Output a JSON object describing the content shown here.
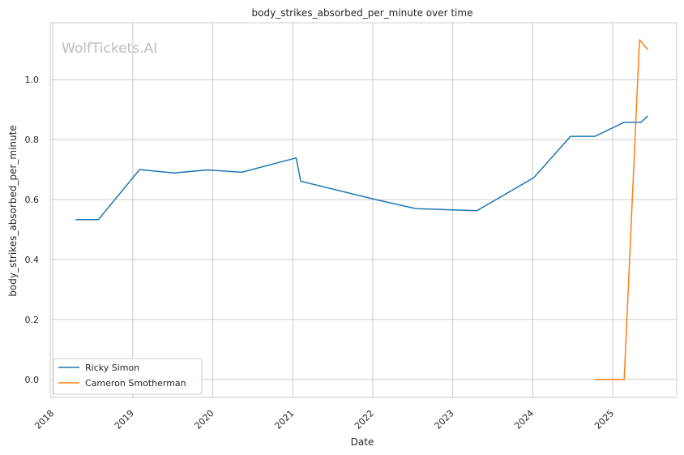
{
  "chart_data": {
    "type": "line",
    "title": "body_strikes_absorbed_per_minute over time",
    "xlabel": "Date",
    "ylabel": "body_strikes_absorbed_per_minute",
    "xlim": [
      "2017-12-20",
      "2025-10-20"
    ],
    "ylim": [
      -0.06,
      1.19
    ],
    "x_ticks": [
      "2018",
      "2019",
      "2020",
      "2021",
      "2022",
      "2023",
      "2024",
      "2025"
    ],
    "y_ticks": [
      0.0,
      0.2,
      0.4,
      0.6,
      0.8,
      1.0
    ],
    "y_tick_labels": [
      "0.0",
      "0.2",
      "0.4",
      "0.6",
      "0.8",
      "1.0"
    ],
    "grid": true,
    "legend_position": "lower-left",
    "watermark": "WolfTickets.AI",
    "series": [
      {
        "name": "Ricky Simon",
        "color": "#1f77b4",
        "x": [
          "2018-04-14",
          "2018-07-28",
          "2019-02-01",
          "2019-07-08",
          "2019-12-07",
          "2020-05-13",
          "2021-01-16",
          "2021-02-06",
          "2022-01-15",
          "2022-07-16",
          "2023-04-22",
          "2024-01-06",
          "2024-06-22",
          "2024-10-12",
          "2025-02-22",
          "2025-05-10",
          "2025-06-10"
        ],
        "y": [
          0.533,
          0.533,
          0.7,
          0.689,
          0.699,
          0.691,
          0.739,
          0.661,
          0.6,
          0.57,
          0.563,
          0.673,
          0.811,
          0.811,
          0.858,
          0.858,
          0.879
        ]
      },
      {
        "name": "Cameron Smotherman",
        "color": "#ff7f0e",
        "x": [
          "2024-10-12",
          "2025-02-22",
          "2025-05-03",
          "2025-06-10"
        ],
        "y": [
          0.0,
          0.0,
          1.133,
          1.1
        ]
      }
    ]
  }
}
